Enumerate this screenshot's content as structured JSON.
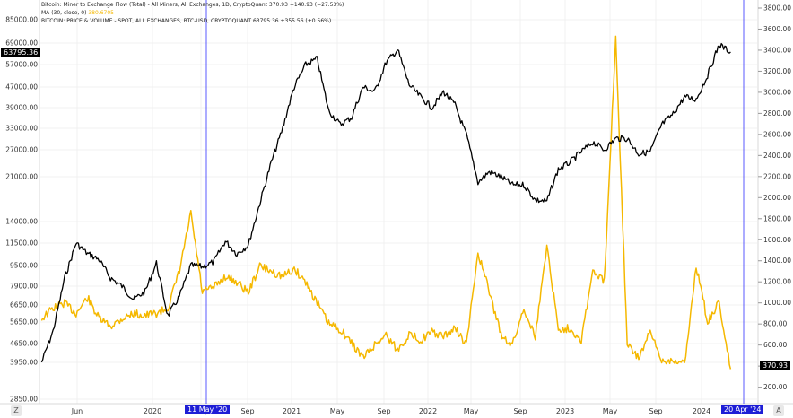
{
  "legend": {
    "line1": "Bitcoin: Miner to Exchange Flow (Total) - All Miners, All Exchanges, 1D, CryptoQuant",
    "line1_value": "370.93  −140.93 (−27.53%)",
    "line2": "MA (30, close, 0)",
    "line2_value": "380.6705",
    "line3": "BITCOIN: PRICE & VOLUME - SPOT, ALL EXCHANGES, BTC-USD, CRYPTOQUANT",
    "line3_value": "63795.36  +355.56 (+0.56%)"
  },
  "badges": {
    "price_label": "63795.36",
    "flow_label": "370.93",
    "date_start": "11 May '20",
    "date_end": "20 Apr '24"
  },
  "buttons": {
    "left": "Z",
    "right": "A"
  },
  "colors": {
    "price_line": "#000000",
    "flow_line": "#f5b800",
    "marker_line": "#2f2fff",
    "badge_blue": "#1e1ed6",
    "grid": "#f0f0f0"
  },
  "chart_data": {
    "type": "line",
    "left_axis": {
      "label": "",
      "scale": "log",
      "ticks": [
        "85000.00",
        "69000.00",
        "57000.00",
        "47000.00",
        "39000.00",
        "33000.00",
        "27000.00",
        "21000.00",
        "14000.00",
        "11500.00",
        "9500.00",
        "7900.00",
        "6650.00",
        "5650.00",
        "4650.00",
        "3950.00",
        "2850.00"
      ]
    },
    "right_axis": {
      "label": "",
      "scale": "linear",
      "range": [
        0,
        3900
      ],
      "ticks": [
        "3800.00",
        "3600.00",
        "3400.00",
        "3200.00",
        "3000.00",
        "2800.00",
        "2600.00",
        "2400.00",
        "2200.00",
        "2000.00",
        "1800.00",
        "1600.00",
        "1400.00",
        "1200.00",
        "1000.00",
        "800.00",
        "600.00",
        "400.00",
        "200.00"
      ]
    },
    "x_axis": {
      "ticks": [
        "Jun",
        "2020",
        "May",
        "Sep",
        "2021",
        "May",
        "Sep",
        "2022",
        "May",
        "Sep",
        "2023",
        "May",
        "Sep",
        "2024"
      ]
    },
    "series": [
      {
        "name": "BITCOIN: PRICE & VOLUME - SPOT, ALL EXCHANGES, BTC-USD, CRYPTOQUANT",
        "axis": "left",
        "x": [
          "2019-04",
          "2019-05",
          "2019-06",
          "2019-07",
          "2019-08",
          "2019-09",
          "2019-10",
          "2019-11",
          "2019-12",
          "2020-01",
          "2020-02",
          "2020-03",
          "2020-04",
          "2020-05",
          "2020-06",
          "2020-07",
          "2020-08",
          "2020-09",
          "2020-10",
          "2020-11",
          "2020-12",
          "2021-01",
          "2021-02",
          "2021-03",
          "2021-04",
          "2021-05",
          "2021-06",
          "2021-07",
          "2021-08",
          "2021-09",
          "2021-10",
          "2021-11",
          "2021-12",
          "2022-01",
          "2022-02",
          "2022-03",
          "2022-04",
          "2022-05",
          "2022-06",
          "2022-07",
          "2022-08",
          "2022-09",
          "2022-10",
          "2022-11",
          "2022-12",
          "2023-01",
          "2023-02",
          "2023-03",
          "2023-04",
          "2023-05",
          "2023-06",
          "2023-07",
          "2023-08",
          "2023-09",
          "2023-10",
          "2023-11",
          "2023-12",
          "2024-01",
          "2024-02",
          "2024-03",
          "2024-04"
        ],
        "values": [
          3950,
          5200,
          8500,
          11500,
          10500,
          10000,
          8500,
          7900,
          7000,
          7500,
          9700,
          6000,
          7200,
          9500,
          9400,
          9800,
          11700,
          10500,
          11300,
          16500,
          24000,
          33000,
          47000,
          57000,
          60000,
          38000,
          34000,
          36000,
          47000,
          45000,
          58000,
          65000,
          48000,
          43000,
          39000,
          45000,
          40000,
          31000,
          20000,
          22000,
          21000,
          19500,
          19500,
          17000,
          16800,
          22500,
          24000,
          26500,
          29000,
          27000,
          30000,
          30000,
          26000,
          26500,
          34000,
          37000,
          43000,
          42000,
          52000,
          68000,
          63795
        ]
      },
      {
        "name": "Bitcoin: Miner to Exchange Flow (Total) - All Miners, All Exchanges, 1D, CryptoQuant",
        "axis": "right",
        "x": [
          "2019-04",
          "2019-05",
          "2019-06",
          "2019-07",
          "2019-08",
          "2019-09",
          "2019-10",
          "2019-11",
          "2019-12",
          "2020-01",
          "2020-02",
          "2020-03",
          "2020-04",
          "2020-05",
          "2020-06",
          "2020-07",
          "2020-08",
          "2020-09",
          "2020-10",
          "2020-11",
          "2020-12",
          "2021-01",
          "2021-02",
          "2021-03",
          "2021-04",
          "2021-05",
          "2021-06",
          "2021-07",
          "2021-08",
          "2021-09",
          "2021-10",
          "2021-11",
          "2021-12",
          "2022-01",
          "2022-02",
          "2022-03",
          "2022-04",
          "2022-05",
          "2022-06",
          "2022-07",
          "2022-08",
          "2022-09",
          "2022-10",
          "2022-11",
          "2022-12",
          "2023-01",
          "2023-02",
          "2023-03",
          "2023-04",
          "2023-05",
          "2023-06",
          "2023-07",
          "2023-08",
          "2023-09",
          "2023-10",
          "2023-11",
          "2023-12",
          "2024-01",
          "2024-02",
          "2024-03",
          "2024-04"
        ],
        "values": [
          850,
          950,
          1000,
          900,
          1050,
          850,
          780,
          850,
          900,
          880,
          900,
          950,
          1300,
          1850,
          1100,
          1150,
          1250,
          1200,
          1100,
          1350,
          1300,
          1250,
          1320,
          1200,
          1000,
          800,
          750,
          620,
          480,
          600,
          700,
          550,
          700,
          650,
          720,
          680,
          760,
          600,
          1480,
          1100,
          700,
          600,
          950,
          680,
          1550,
          750,
          760,
          650,
          1300,
          1200,
          3520,
          600,
          480,
          720,
          450,
          460,
          420,
          1350,
          820,
          1000,
          371
        ]
      }
    ]
  }
}
